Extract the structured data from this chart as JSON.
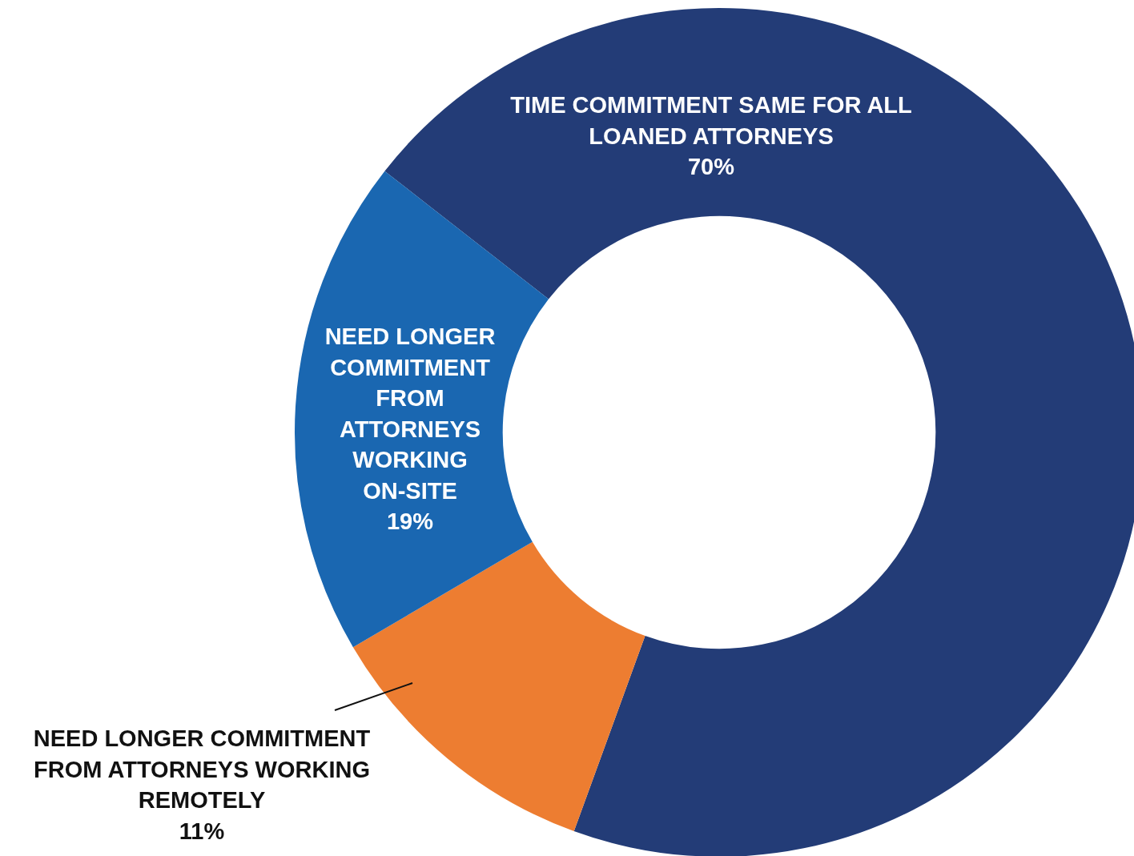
{
  "chart_data": {
    "type": "donut",
    "categories": [
      "TIME COMMITMENT SAME FOR ALL LOANED ATTORNEYS",
      "NEED LONGER COMMITMENT FROM ATTORNEYS WORKING REMOTELY",
      "NEED LONGER COMMITMENT FROM ATTORNEYS WORKING ON-SITE"
    ],
    "values": [
      70,
      11,
      19
    ],
    "colors": [
      "#233c77",
      "#ed7d31",
      "#1a67b1"
    ],
    "value_labels": [
      "70%",
      "11%",
      "19%"
    ],
    "legend": false
  }
}
